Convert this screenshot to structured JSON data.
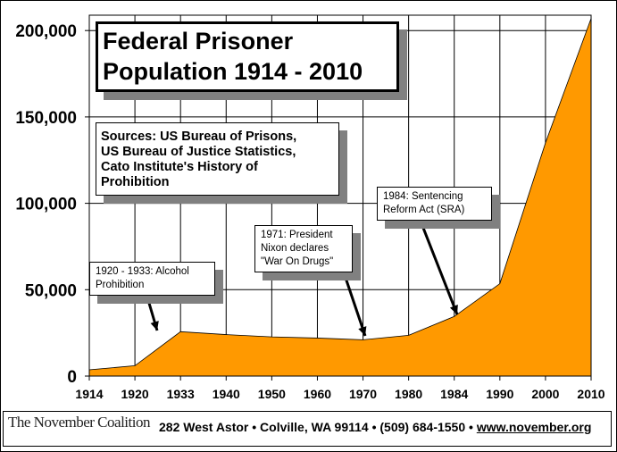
{
  "chart_data": {
    "type": "area",
    "title": "Federal Prisoner Population 1914 - 2010",
    "categories": [
      "1914",
      "1920",
      "1933",
      "1940",
      "1950",
      "1960",
      "1970",
      "1980",
      "1984",
      "1990",
      "2000",
      "2010"
    ],
    "values": [
      3600,
      6000,
      25700,
      24000,
      22700,
      22000,
      21000,
      23600,
      34500,
      53500,
      135000,
      207000
    ],
    "ylim": [
      0,
      210000
    ],
    "yticks": [
      0,
      50000,
      100000,
      150000,
      200000
    ],
    "ytick_labels": [
      "0",
      "50,000",
      "100,000",
      "150,000",
      "200,000"
    ],
    "grid": true,
    "fill_color": "#FF9900",
    "xlabel": "",
    "ylabel": ""
  },
  "title_box": {
    "line1": "Federal Prisoner",
    "line2": "Population 1914 - 2010"
  },
  "sources_box": {
    "line1": "Sources: US Bureau of Prisons,",
    "line2": "US Bureau of Justice Statistics,",
    "line3": "Cato Institute's History of",
    "line4": "Prohibition"
  },
  "annotations": [
    {
      "line1": "1920 - 1933: Alcohol",
      "line2": "Prohibition",
      "target_year": 1926
    },
    {
      "line1": "1971:  President",
      "line2": "Nixon declares",
      "line3": "\"War On Drugs\"",
      "target_year": 1970
    },
    {
      "line1": "1984: Sentencing",
      "line2": "Reform Act (SRA)",
      "target_year": 1984
    }
  ],
  "footer": {
    "logo": "The November Coalition",
    "address": "282 West Astor • Colville, WA 99114 • (509) 684-1550 • ",
    "url": "www.november.org"
  }
}
